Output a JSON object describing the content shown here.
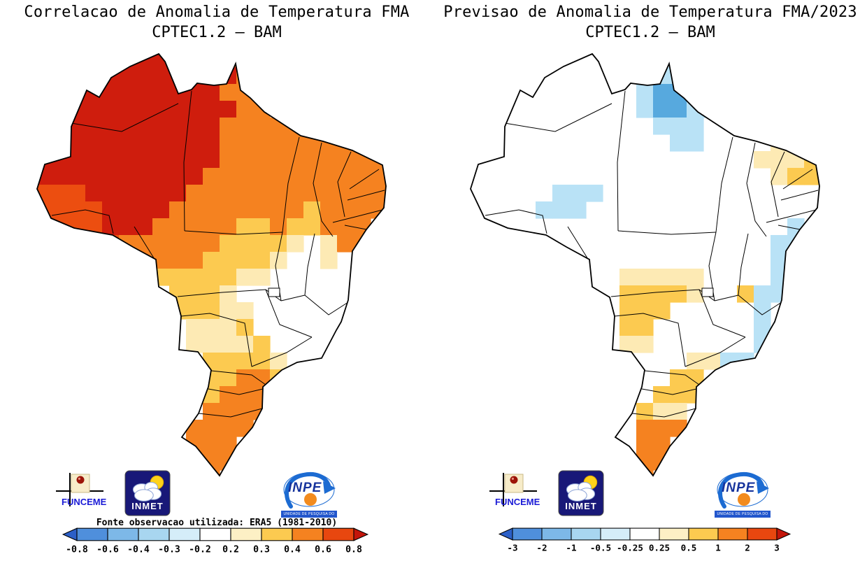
{
  "palette": {
    "R": "#cf1d0d",
    "r": "#ec4e10",
    "o": "#f58220",
    "y": "#fcca50",
    "p": "#fdeab4",
    "B": "#57a9de",
    "c": "#b9e2f6"
  },
  "colorbar_colors": [
    "#2b5fc7",
    "#4f8fdc",
    "#7db8e8",
    "#a8d6f0",
    "#d5edf9",
    "#ffffff",
    "#fdf0c5",
    "#fcca50",
    "#f58220",
    "#e8470f",
    "#c3150a"
  ],
  "panels": {
    "left": {
      "title_line1": "Correlacao de Anomalia de Temperatura FMA",
      "title_line2": "CPTEC1.2 — BAM",
      "source_note": "Fonte observacao utilizada: ERA5 (1981-2010)",
      "colorbar_labels": [
        "-0.8",
        "-0.6",
        "-0.4",
        "-0.3",
        "-0.2",
        "0.2",
        "0.3",
        "0.4",
        "0.6",
        "0.8"
      ],
      "grid": [
        "....RRRR...oo........",
        "...RRRRRRRRRoo.......",
        "..RRRRRRRRRooo.......",
        "..RRRRRRRRRRoo.......",
        ".RRRRRRRRRRooooo.....",
        ".RRRRRRRRRRoooooooo..",
        "RRRRRRRRRRRoooooooooo",
        "RRRRRRRRRRooooooooooo",
        "rrrRRRRRRoooooooooooo",
        "rrrrRRRRooooooooyoooo",
        ".rrrRRRoooooyyoyyooo.",
        "..rrrooooooyyyyp.poo.",
        ".....oooooyyyyp..p...",
        ".......yyyyypp.......",
        "........yyyp.........",
        "........yyypp........",
        ".........pppy........",
        ".........ppppy.......",
        "..........yyyyp......",
        "..........yyooy......",
        "..........yooo.......",
        "..........oooo.......",
        ".........oooo........",
        ".........ooo.........",
        "..........oo.........",
        "..........o.........."
      ]
    },
    "right": {
      "title_line1": "Previsao de Anomalia de Temperatura FMA/2023",
      "title_line2": "CPTEC1.2 — BAM",
      "colorbar_labels": [
        "-3",
        "-2",
        "-1",
        "-0.5",
        "-0.25",
        "0.25",
        "0.5",
        "1",
        "2",
        "3"
      ],
      "grid": [
        ".....................",
        "...........ccc.......",
        "..........cBBc.......",
        "..........cBBcc......",
        "...........ccc.......",
        "............cc....pp.",
        ".................pppy",
        "..................pyy",
        ".....ccc.............",
        "....ccc..............",
        "...................c.",
        "..................cc.",
        "..................c..",
        ".........ppppp....c..",
        ".........yyyyp..ycc..",
        ".........yyy.....c...",
        ".........yy......c...",
        ".........pp......c...",
        ".............ppcc....",
        "............yy.......",
        "...........yyy.......",
        "..........ypp........",
        "..........ooo........",
        "..........oo.........",
        "..........oo.........",
        "..........o.........."
      ]
    }
  },
  "logos": {
    "funceme": {
      "label": "FUNCEME"
    },
    "inmet": {
      "label": "INMET"
    },
    "inpe": {
      "label": "INPE",
      "sub": "UNIDADE DE PESQUISA DO MCTI"
    }
  }
}
